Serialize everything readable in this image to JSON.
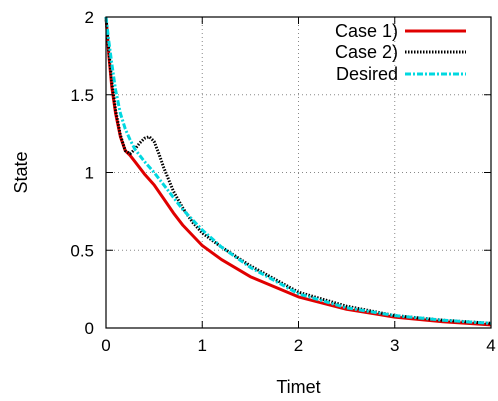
{
  "chart_data": {
    "type": "line",
    "xlabel": "Timet",
    "ylabel": "State",
    "xlim": [
      0,
      4
    ],
    "ylim": [
      0,
      2
    ],
    "xticks": [
      0,
      1,
      2,
      3,
      4
    ],
    "yticks": [
      0,
      0.5,
      1,
      1.5,
      2
    ],
    "xtick_labels": [
      "0",
      "1",
      "2",
      "3",
      "4"
    ],
    "ytick_labels": [
      "0",
      "0.5",
      "1",
      "1.5",
      "2"
    ],
    "grid": true,
    "legend_position": "top-right",
    "series": [
      {
        "name": "Case 1)",
        "color": "#e00000",
        "style": "solid",
        "x": [
          0,
          0.03,
          0.06,
          0.1,
          0.15,
          0.2,
          0.25,
          0.3,
          0.4,
          0.5,
          0.6,
          0.7,
          0.8,
          1.0,
          1.2,
          1.5,
          2.0,
          2.5,
          3.0,
          3.5,
          4.0
        ],
        "y": [
          2.0,
          1.75,
          1.55,
          1.38,
          1.23,
          1.14,
          1.11,
          1.07,
          0.99,
          0.92,
          0.83,
          0.74,
          0.66,
          0.53,
          0.44,
          0.33,
          0.2,
          0.12,
          0.07,
          0.04,
          0.02
        ]
      },
      {
        "name": "Case 2)",
        "color": "#000000",
        "style": "dotted",
        "x": [
          0,
          0.03,
          0.06,
          0.1,
          0.15,
          0.2,
          0.25,
          0.3,
          0.35,
          0.4,
          0.45,
          0.5,
          0.55,
          0.6,
          0.7,
          0.8,
          0.9,
          1.0,
          1.2,
          1.5,
          2.0,
          2.5,
          3.0,
          3.5,
          4.0
        ],
        "y": [
          2.0,
          1.78,
          1.58,
          1.4,
          1.24,
          1.14,
          1.12,
          1.15,
          1.19,
          1.22,
          1.23,
          1.2,
          1.12,
          1.03,
          0.88,
          0.77,
          0.68,
          0.61,
          0.52,
          0.4,
          0.23,
          0.14,
          0.08,
          0.05,
          0.03
        ]
      },
      {
        "name": "Desired",
        "color": "#00d8e0",
        "style": "dash-dot",
        "x": [
          0,
          0.03,
          0.06,
          0.1,
          0.15,
          0.2,
          0.25,
          0.3,
          0.4,
          0.5,
          0.6,
          0.7,
          0.8,
          1.0,
          1.2,
          1.5,
          2.0,
          2.5,
          3.0,
          3.5,
          4.0
        ],
        "y": [
          2.0,
          1.84,
          1.7,
          1.53,
          1.38,
          1.28,
          1.21,
          1.15,
          1.07,
          1.0,
          0.92,
          0.84,
          0.76,
          0.63,
          0.52,
          0.39,
          0.22,
          0.13,
          0.08,
          0.05,
          0.03
        ]
      }
    ]
  }
}
